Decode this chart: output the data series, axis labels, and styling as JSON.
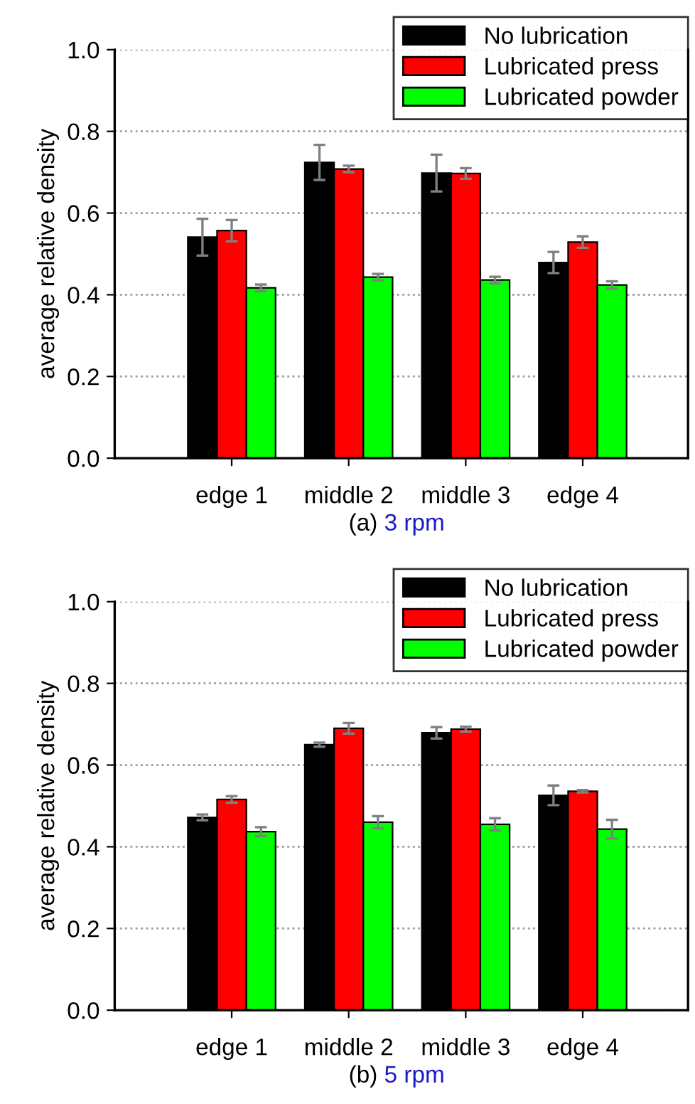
{
  "chart_data": [
    {
      "type": "bar",
      "title": "(a) 3 rpm",
      "ylabel": "average relative density",
      "categories": [
        "edge 1",
        "middle 2",
        "middle 3",
        "edge 4"
      ],
      "ylim": [
        0,
        1.0
      ],
      "yticks": [
        {
          "value": 0,
          "label": "0.0"
        },
        {
          "value": 0.2,
          "label": "0.2"
        },
        {
          "value": 0.4,
          "label": "0.4"
        },
        {
          "value": 0.6,
          "label": "0.6"
        },
        {
          "value": 0.8,
          "label": "0.8"
        },
        {
          "value": 1.0,
          "label": "1.0"
        }
      ],
      "grid": "y",
      "legend": "top right",
      "series": [
        {
          "name": "No lubrication",
          "color": "#000000",
          "values": [
            0.541,
            0.724,
            0.698,
            0.479
          ],
          "errors": [
            0.045,
            0.043,
            0.045,
            0.026
          ]
        },
        {
          "name": "Lubricated press",
          "color": "#ff0000",
          "values": [
            0.557,
            0.708,
            0.697,
            0.529
          ],
          "errors": [
            0.026,
            0.008,
            0.013,
            0.014
          ]
        },
        {
          "name": "Lubricated powder",
          "color": "#00ff00",
          "values": [
            0.417,
            0.443,
            0.436,
            0.424
          ],
          "errors": [
            0.008,
            0.008,
            0.008,
            0.009
          ]
        }
      ]
    },
    {
      "type": "bar",
      "title": "(b) 5 rpm",
      "ylabel": "average relative density",
      "categories": [
        "edge 1",
        "middle 2",
        "middle 3",
        "edge 4"
      ],
      "ylim": [
        0,
        1.0
      ],
      "yticks": [
        {
          "value": 0,
          "label": "0.0"
        },
        {
          "value": 0.2,
          "label": "0.2"
        },
        {
          "value": 0.4,
          "label": "0.4"
        },
        {
          "value": 0.6,
          "label": "0.6"
        },
        {
          "value": 0.8,
          "label": "0.8"
        },
        {
          "value": 1.0,
          "label": "1.0"
        }
      ],
      "grid": "y",
      "legend": "top right",
      "series": [
        {
          "name": "No lubrication",
          "color": "#000000",
          "values": [
            0.472,
            0.65,
            0.679,
            0.526
          ],
          "errors": [
            0.007,
            0.005,
            0.014,
            0.024
          ]
        },
        {
          "name": "Lubricated press",
          "color": "#ff0000",
          "values": [
            0.516,
            0.69,
            0.688,
            0.536
          ],
          "errors": [
            0.008,
            0.013,
            0.006,
            0.003
          ]
        },
        {
          "name": "Lubricated powder",
          "color": "#00ff00",
          "values": [
            0.437,
            0.46,
            0.455,
            0.443
          ],
          "errors": [
            0.011,
            0.015,
            0.015,
            0.023
          ]
        }
      ]
    }
  ]
}
